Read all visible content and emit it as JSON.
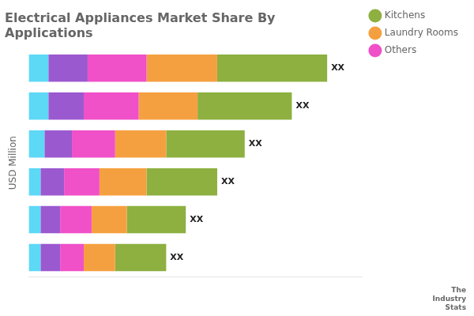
{
  "chart_data": {
    "type": "bar",
    "orientation": "horizontal",
    "stacked": true,
    "title": "Electrical Appliances Market Share By\nApplications",
    "ylabel": "USD Million",
    "categories": [
      null,
      null,
      null,
      null,
      null,
      null
    ],
    "series": [
      {
        "color": "#5DD8F5",
        "values": [
          5,
          5,
          4,
          3,
          3,
          3
        ]
      },
      {
        "color": "#9B59D0",
        "values": [
          10,
          9,
          7,
          6,
          5,
          5
        ]
      },
      {
        "name": "Others",
        "color": "#F050C8",
        "values": [
          15,
          14,
          11,
          9,
          8,
          6
        ]
      },
      {
        "name": "Laundry Rooms",
        "color": "#F5A040",
        "values": [
          18,
          15,
          13,
          12,
          9,
          8
        ]
      },
      {
        "name": "Kitchens",
        "color": "#8DB040",
        "values": [
          28,
          24,
          20,
          18,
          15,
          13
        ]
      }
    ],
    "xlim": [
      0,
      85
    ],
    "tick_labels": false,
    "grid": false,
    "legend": "upper right",
    "annotations": [
      "XX",
      "XX",
      "XX",
      "XX",
      "XX",
      "XX"
    ],
    "footnote": "The\nIndustry\nStats"
  }
}
